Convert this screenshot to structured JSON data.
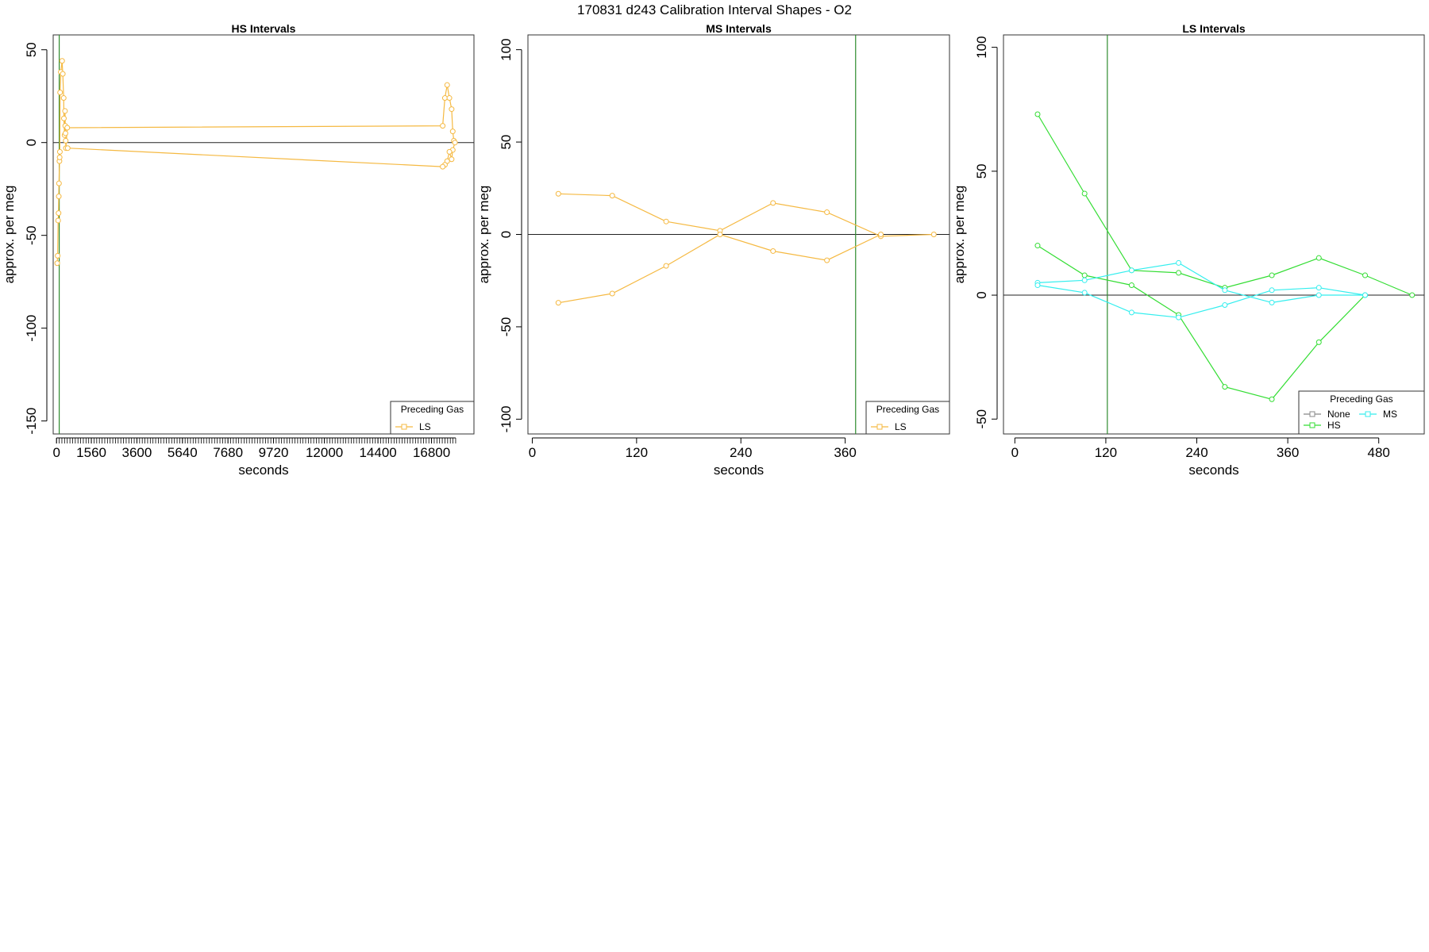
{
  "figure": {
    "title": "170831   d243   Calibration Interval Shapes - O2"
  },
  "colors": {
    "ls": "#f5b942",
    "hs": "#33dd33",
    "ms": "#33eeee",
    "none": "#888888",
    "vline": "#2e8b2e",
    "hline": "#222222"
  },
  "chart_data": [
    {
      "type": "line",
      "title": "HS Intervals",
      "xlabel": "seconds",
      "ylabel": "approx. per meg",
      "xlim": [
        -150,
        18700
      ],
      "ylim": [
        -157,
        58
      ],
      "x_tick_labels": [
        "0",
        "1560",
        "3600",
        "5640",
        "7680",
        "9720",
        "12000",
        "14400",
        "16800"
      ],
      "x_tick_values": [
        0,
        1560,
        3600,
        5640,
        7680,
        9720,
        12000,
        14400,
        16800
      ],
      "y_ticks": [
        50,
        0,
        -50,
        -100,
        -150
      ],
      "vline": 120,
      "hline": 0,
      "legend": {
        "title": "Preceding Gas",
        "position": "bottom-right",
        "entries": [
          {
            "label": "LS",
            "color": "ls"
          }
        ]
      },
      "series": [
        {
          "name": "LS",
          "color": "ls",
          "points": [
            [
              30,
              -65
            ],
            [
              50,
              -61
            ],
            [
              70,
              -42
            ],
            [
              90,
              -38
            ],
            [
              100,
              -29
            ],
            [
              110,
              -22
            ],
            [
              130,
              -10
            ],
            [
              140,
              -8
            ],
            [
              150,
              -5
            ],
            [
              160,
              27
            ],
            [
              190,
              38
            ],
            [
              250,
              44
            ],
            [
              280,
              37
            ],
            [
              320,
              24
            ],
            [
              330,
              13
            ],
            [
              360,
              4
            ],
            [
              380,
              17
            ],
            [
              390,
              9
            ],
            [
              400,
              5
            ],
            [
              410,
              1
            ],
            [
              420,
              -3
            ],
            [
              480,
              8
            ],
            [
              17300,
              9
            ],
            [
              17400,
              24
            ],
            [
              17500,
              31
            ],
            [
              17600,
              24
            ],
            [
              17700,
              18
            ],
            [
              17750,
              6
            ],
            [
              17800,
              1
            ],
            [
              17850,
              0
            ],
            [
              17750,
              -4
            ],
            [
              17700,
              -9
            ],
            [
              17600,
              -5
            ],
            [
              17500,
              -10
            ],
            [
              17400,
              -12
            ],
            [
              17300,
              -13
            ],
            [
              500,
              -3
            ]
          ]
        }
      ]
    },
    {
      "type": "line",
      "title": "MS Intervals",
      "xlabel": "seconds",
      "ylabel": "approx. per meg",
      "xlim": [
        -5,
        480
      ],
      "ylim": [
        -108,
        108
      ],
      "x_ticks": [
        0,
        120,
        240,
        360
      ],
      "y_ticks": [
        100,
        50,
        0,
        -50,
        -100
      ],
      "vline": 372,
      "hline": 0,
      "legend": {
        "title": "Preceding Gas",
        "position": "bottom-right",
        "entries": [
          {
            "label": "LS",
            "color": "ls"
          }
        ]
      },
      "series": [
        {
          "name": "LS",
          "color": "ls",
          "points": [
            [
              30,
              22
            ],
            [
              92,
              21
            ],
            [
              154,
              7
            ],
            [
              216,
              2
            ],
            [
              277,
              17
            ],
            [
              339,
              12
            ],
            [
              401,
              -1
            ],
            [
              462,
              0
            ]
          ]
        },
        {
          "name": "LS",
          "color": "ls",
          "points": [
            [
              30,
              -37
            ],
            [
              92,
              -32
            ],
            [
              154,
              -17
            ],
            [
              216,
              0
            ],
            [
              277,
              -9
            ],
            [
              339,
              -14
            ],
            [
              401,
              0
            ]
          ]
        }
      ]
    },
    {
      "type": "line",
      "title": "LS Intervals",
      "xlabel": "seconds",
      "ylabel": "approx. per meg",
      "xlim": [
        -15,
        540
      ],
      "ylim": [
        -56,
        105
      ],
      "x_ticks": [
        0,
        120,
        240,
        360,
        480
      ],
      "y_ticks": [
        100,
        50,
        0,
        -50
      ],
      "vline": 122,
      "hline": 0,
      "legend": {
        "title": "Preceding Gas",
        "position": "bottom-right",
        "entries": [
          {
            "label": "None",
            "color": "none"
          },
          {
            "label": "MS",
            "color": "ms"
          },
          {
            "label": "HS",
            "color": "hs"
          }
        ]
      },
      "series": [
        {
          "name": "HS",
          "color": "hs",
          "points": [
            [
              30,
              73
            ],
            [
              92,
              41
            ],
            [
              154,
              10
            ],
            [
              216,
              9
            ],
            [
              277,
              3
            ],
            [
              339,
              8
            ],
            [
              401,
              15
            ],
            [
              462,
              8
            ],
            [
              524,
              0
            ]
          ]
        },
        {
          "name": "HS",
          "color": "hs",
          "points": [
            [
              30,
              20
            ],
            [
              92,
              8
            ],
            [
              154,
              4
            ],
            [
              216,
              -8
            ],
            [
              277,
              -37
            ],
            [
              339,
              -42
            ],
            [
              401,
              -19
            ],
            [
              462,
              0
            ]
          ]
        },
        {
          "name": "MS",
          "color": "ms",
          "points": [
            [
              30,
              5
            ],
            [
              92,
              6
            ],
            [
              154,
              10
            ],
            [
              216,
              13
            ],
            [
              277,
              2
            ],
            [
              339,
              -3
            ],
            [
              401,
              0
            ],
            [
              462,
              0
            ]
          ]
        },
        {
          "name": "MS",
          "color": "ms",
          "points": [
            [
              30,
              4
            ],
            [
              92,
              1
            ],
            [
              154,
              -7
            ],
            [
              216,
              -9
            ],
            [
              277,
              -4
            ],
            [
              339,
              2
            ],
            [
              401,
              3
            ],
            [
              462,
              0
            ]
          ]
        }
      ]
    }
  ]
}
